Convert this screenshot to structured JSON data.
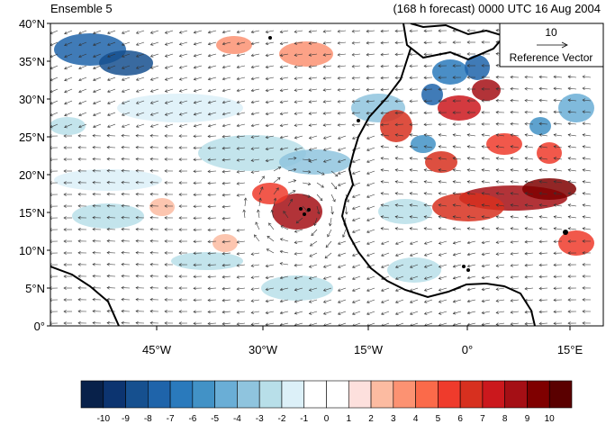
{
  "title_left": "Ensemble 5",
  "title_right": "(168 h forecast) 0000 UTC 16 Aug 2004",
  "map": {
    "lat_labels": [
      "40°N",
      "35°N",
      "30°N",
      "25°N",
      "20°N",
      "15°N",
      "10°N",
      "5°N",
      "0°"
    ],
    "lon_labels": [
      "45°W",
      "30°W",
      "15°W",
      "0°",
      "15°E"
    ],
    "lat_range": [
      0,
      40
    ],
    "lon_range": [
      -59,
      19
    ]
  },
  "reference_vector": {
    "value": "10",
    "label": "Reference Vector"
  },
  "colorbar": {
    "labels": [
      "-10",
      "-9",
      "-8",
      "-7",
      "-6",
      "-5",
      "-4",
      "-3",
      "-2",
      "-1",
      "0",
      "1",
      "2",
      "3",
      "4",
      "5",
      "6",
      "7",
      "8",
      "9",
      "10"
    ],
    "colors": [
      "#08214a",
      "#0c3470",
      "#16508f",
      "#1f64aa",
      "#2a7abc",
      "#4292c6",
      "#6aaed6",
      "#8fc4de",
      "#b8dfe9",
      "#dcf0f8",
      "#ffffff",
      "#ffffff",
      "#fde0dd",
      "#fcbba1",
      "#fc9272",
      "#fb6a4a",
      "#ef3b2c",
      "#d7301f",
      "#cb181d",
      "#a50f15",
      "#7f0000",
      "#5a0000"
    ]
  }
}
